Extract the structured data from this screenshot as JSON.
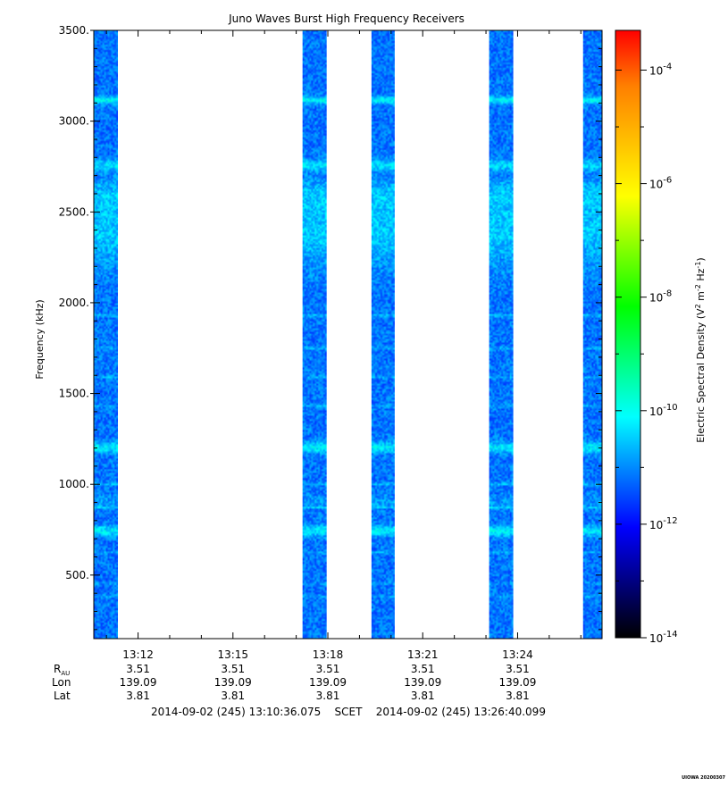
{
  "chart_data": {
    "type": "heatmap",
    "title": "Juno Waves Burst High Frequency Receivers",
    "ylabel": "Frequency (kHz)",
    "ylim": [
      150,
      3500
    ],
    "y_ticks": [
      {
        "value": 500,
        "label": "500."
      },
      {
        "value": 1000,
        "label": "1000."
      },
      {
        "value": 1500,
        "label": "1500."
      },
      {
        "value": 2000,
        "label": "2000."
      },
      {
        "value": 2500,
        "label": "2500."
      },
      {
        "value": 3000,
        "label": "3000."
      },
      {
        "value": 3500,
        "label": "3500."
      }
    ],
    "x_range_minutes": [
      10.6,
      26.67
    ],
    "x_ticks": [
      {
        "minute": 12,
        "label": "13:12",
        "rau": "3.51",
        "lon": "139.09",
        "lat": "3.81"
      },
      {
        "minute": 15,
        "label": "13:15",
        "rau": "3.51",
        "lon": "139.09",
        "lat": "3.81"
      },
      {
        "minute": 18,
        "label": "13:18",
        "rau": "3.51",
        "lon": "139.09",
        "lat": "3.81"
      },
      {
        "minute": 21,
        "label": "13:21",
        "rau": "3.51",
        "lon": "139.09",
        "lat": "3.81"
      },
      {
        "minute": 24,
        "label": "13:24",
        "rau": "3.51",
        "lon": "139.09",
        "lat": "3.81"
      }
    ],
    "ephemeris_labels": {
      "rau_main": "R",
      "rau_sub": "AU",
      "lon": "Lon",
      "lat": "Lat"
    },
    "time_range_text": "2014-09-02 (245) 13:10:36.075    SCET    2014-09-02 (245) 13:26:40.099",
    "bursts_minutes": [
      {
        "start": 10.6,
        "end": 11.35
      },
      {
        "start": 17.2,
        "end": 17.95
      },
      {
        "start": 19.38,
        "end": 20.12
      },
      {
        "start": 23.1,
        "end": 23.85
      },
      {
        "start": 26.07,
        "end": 26.67
      }
    ],
    "emission_bands_khz": [
      {
        "freq": 3120,
        "width": 20,
        "level": 0.9
      },
      {
        "freq": 2760,
        "width": 30,
        "level": 0.65
      },
      {
        "freq": 2400,
        "width": 200,
        "level": 0.55
      },
      {
        "freq": 2600,
        "width": 80,
        "level": 0.35
      },
      {
        "freq": 1200,
        "width": 30,
        "level": 0.8
      },
      {
        "freq": 740,
        "width": 30,
        "level": 0.8
      },
      {
        "freq": 900,
        "width": 40,
        "level": 0.25
      },
      {
        "freq": 1930,
        "width": 8,
        "level": 0.5
      },
      {
        "freq": 1750,
        "width": 8,
        "level": 0.4
      },
      {
        "freq": 1590,
        "width": 8,
        "level": 0.35
      },
      {
        "freq": 1430,
        "width": 8,
        "level": 0.35
      },
      {
        "freq": 1000,
        "width": 8,
        "level": 0.45
      },
      {
        "freq": 870,
        "width": 6,
        "level": 0.5
      },
      {
        "freq": 620,
        "width": 6,
        "level": 0.45
      },
      {
        "freq": 450,
        "width": 6,
        "level": 0.4
      },
      {
        "freq": 380,
        "width": 6,
        "level": 0.45
      }
    ],
    "colorbar": {
      "label_main": "Electric Spectral Density (V",
      "label_sup1": "2",
      "label_mid": " m",
      "label_sup2": "-2",
      "label_mid2": " Hz",
      "label_sup3": "-1",
      "label_end": ")",
      "range_log10": [
        -14,
        -3.3
      ],
      "ticks": [
        {
          "exp": -4,
          "base": "10",
          "sup": "-4"
        },
        {
          "exp": -6,
          "base": "10",
          "sup": "-6"
        },
        {
          "exp": -8,
          "base": "10",
          "sup": "-8"
        },
        {
          "exp": -10,
          "base": "10",
          "sup": "-10"
        },
        {
          "exp": -12,
          "base": "10",
          "sup": "-12"
        },
        {
          "exp": -14,
          "base": "10",
          "sup": "-14"
        }
      ],
      "colors": [
        "#000000",
        "#00007f",
        "#0000ff",
        "#007fff",
        "#00ffff",
        "#00ff7f",
        "#00ff00",
        "#7fff00",
        "#ffff00",
        "#ffbf00",
        "#ff7f00",
        "#ff0000"
      ]
    },
    "footer_stamp": "UIOWA 20200307"
  }
}
